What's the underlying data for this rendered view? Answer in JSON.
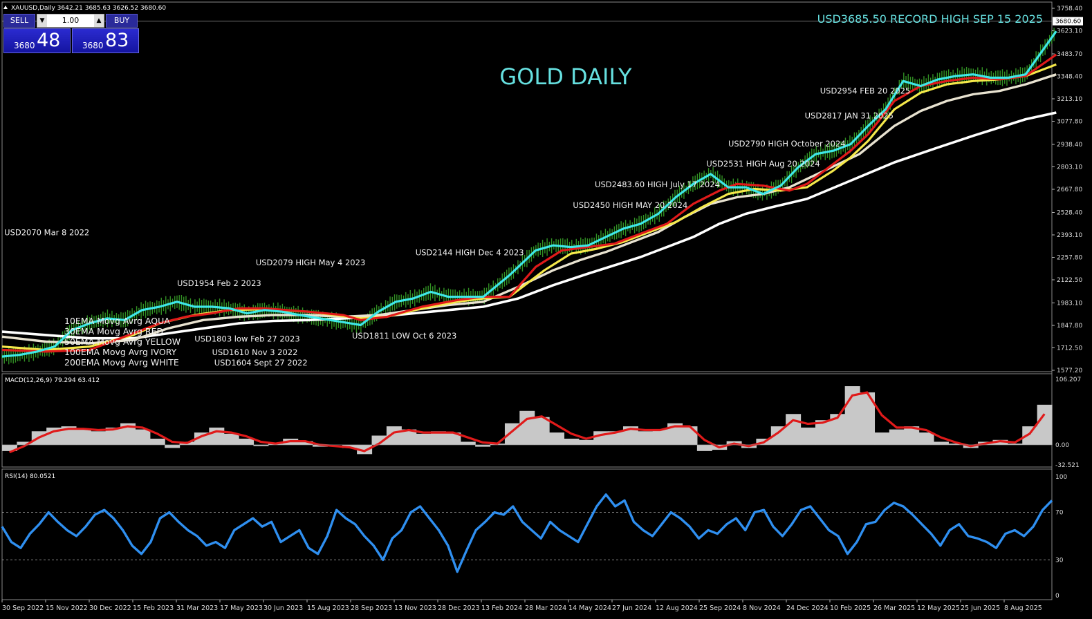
{
  "symbol_header": "XAUUSD,Daily  3642.21 3685.63 3626.52 3680.60",
  "trade_panel": {
    "sell_label": "SELL",
    "buy_label": "BUY",
    "lot": "1.00",
    "sell_small": "3680",
    "sell_big": "48",
    "buy_small": "3680",
    "buy_big": "83"
  },
  "colors": {
    "ema10": "#3ee8e8",
    "ema30": "#e01a1a",
    "ema50": "#f5e84a",
    "ema100": "#e8e2d0",
    "ema200": "#ffffff",
    "candle": "#3aa82a",
    "macd_hist": "#c8c8c8",
    "macd_signal": "#e01a1a",
    "rsi": "#2f8ff0",
    "title": "#66e0e0"
  },
  "chart_data": [
    {
      "type": "line",
      "title": "GOLD DAILY",
      "subtitle": "USD3685.50 RECORD HIGH SEP 15 2025",
      "ylim": [
        1577.2,
        3758.4
      ],
      "y_ticks": [
        "3758.40",
        "3623.10",
        "3483.70",
        "3348.40",
        "3213.10",
        "3077.80",
        "2938.40",
        "2803.10",
        "2667.80",
        "2528.40",
        "2393.10",
        "2257.80",
        "2122.50",
        "1983.10",
        "1847.80",
        "1712.50",
        "1577.20"
      ],
      "price_tag": "3680.60",
      "x_ticks": [
        "30 Sep 2022",
        "15 Nov 2022",
        "30 Dec 2022",
        "15 Feb 2023",
        "31 Mar 2023",
        "17 May 2023",
        "30 Jun 2023",
        "15 Aug 2023",
        "28 Sep 2023",
        "13 Nov 2023",
        "28 Dec 2023",
        "13 Feb 2024",
        "28 Mar 2024",
        "14 May 2024",
        "27 Jun 2024",
        "12 Aug 2024",
        "25 Sep 2024",
        "8 Nov 2024",
        "24 Dec 2024",
        "10 Feb 2025",
        "26 Mar 2025",
        "12 May 2025",
        "25 Jun 2025",
        "8 Aug 2025"
      ],
      "x_index": [
        0,
        0.5,
        1,
        1.5,
        2,
        2.5,
        3,
        3.5,
        4,
        4.5,
        5,
        5.5,
        6,
        6.5,
        7,
        7.5,
        8,
        8.5,
        9,
        9.5,
        10,
        10.5,
        11,
        11.5,
        12,
        12.5,
        13,
        13.5,
        14,
        14.5,
        15,
        15.5,
        16,
        16.5,
        17,
        17.5,
        18,
        18.5,
        19,
        19.5,
        20,
        20.5,
        21,
        21.5,
        22,
        22.5,
        23,
        23.5,
        24
      ],
      "series": [
        {
          "name": "10EMA Movg Avrg AQUA",
          "values": [
            1660,
            1670,
            1690,
            1720,
            1820,
            1860,
            1890,
            1880,
            1940,
            1960,
            1990,
            1960,
            1960,
            1950,
            1920,
            1940,
            1930,
            1910,
            1850,
            1930,
            1990,
            2010,
            2050,
            2020,
            2020,
            2150,
            2300,
            2330,
            2320,
            2330,
            2380,
            2430,
            2460,
            2520,
            2620,
            2700,
            2760,
            2680,
            2680,
            2640,
            2690,
            2800,
            2880,
            2900,
            2940,
            3050,
            3150,
            3320,
            3290,
            3330,
            3350,
            3360,
            3340,
            3340,
            3360,
            3620
          ],
          "x": [
            0,
            0.4,
            0.8,
            1.2,
            1.6,
            2,
            2.4,
            2.8,
            3.2,
            3.6,
            4,
            4.4,
            4.8,
            5.2,
            5.6,
            6,
            6.4,
            6.8,
            8.2,
            8.6,
            9,
            9.4,
            9.8,
            10.2,
            11,
            11.6,
            12.2,
            12.6,
            13,
            13.4,
            13.8,
            14.2,
            14.6,
            15,
            15.4,
            15.8,
            16.2,
            16.6,
            17,
            17.4,
            17.8,
            18.2,
            18.6,
            19,
            19.4,
            19.8,
            20.2,
            20.6,
            21,
            21.4,
            21.8,
            22.2,
            22.6,
            23,
            23.4,
            24.1
          ]
        },
        {
          "name": "30EMA Movg Avrg RED",
          "values": [
            1700,
            1690,
            1700,
            1800,
            1860,
            1900,
            1920,
            1950,
            1950,
            1930,
            1910,
            1880,
            1900,
            1960,
            2000,
            2020,
            2020,
            2200,
            2300,
            2320,
            2340,
            2400,
            2460,
            2580,
            2660,
            2700,
            2690,
            2660,
            2700,
            2820,
            2900,
            3000,
            3200,
            3290,
            3320,
            3340,
            3330,
            3350,
            3480
          ],
          "x": [
            0,
            1,
            2,
            3,
            3.6,
            4.2,
            4.8,
            5.4,
            6,
            7,
            7.8,
            8.2,
            8.8,
            9.6,
            10.4,
            11,
            11.6,
            12.2,
            12.8,
            13.4,
            14,
            14.6,
            15.2,
            15.8,
            16.4,
            16.8,
            17.4,
            18,
            18.4,
            19,
            19.4,
            19.8,
            20.4,
            21,
            21.6,
            22.2,
            22.8,
            23.4,
            24.1
          ]
        },
        {
          "name": "50EMA Movg Avrg YELLOW",
          "values": [
            1720,
            1700,
            1720,
            1790,
            1860,
            1910,
            1940,
            1945,
            1930,
            1910,
            1890,
            1900,
            1950,
            1990,
            2010,
            2020,
            2180,
            2280,
            2310,
            2350,
            2410,
            2470,
            2560,
            2640,
            2670,
            2660,
            2680,
            2780,
            2860,
            2960,
            3150,
            3250,
            3300,
            3320,
            3330,
            3350,
            3420
          ],
          "x": [
            0,
            1,
            2,
            3,
            3.6,
            4.4,
            5.2,
            6,
            7,
            7.6,
            8.2,
            8.8,
            9.6,
            10.4,
            11,
            11.6,
            12.4,
            13,
            13.6,
            14.2,
            14.8,
            15.4,
            16,
            16.6,
            17.2,
            17.8,
            18.4,
            19,
            19.4,
            19.8,
            20.4,
            21,
            21.6,
            22.2,
            22.8,
            23.4,
            24.1
          ]
        },
        {
          "name": "100EMA Movg Avrg IVORY",
          "values": [
            1780,
            1750,
            1740,
            1760,
            1830,
            1880,
            1900,
            1910,
            1910,
            1900,
            1910,
            1940,
            1970,
            1990,
            2080,
            2180,
            2240,
            2290,
            2350,
            2410,
            2500,
            2580,
            2620,
            2640,
            2680,
            2780,
            2880,
            3050,
            3140,
            3200,
            3240,
            3260,
            3300,
            3360
          ],
          "x": [
            0,
            1,
            2,
            3,
            3.8,
            4.6,
            5.4,
            6.2,
            7,
            7.8,
            8.6,
            9.4,
            10.2,
            11,
            11.8,
            12.6,
            13.2,
            13.8,
            14.4,
            15,
            15.6,
            16.2,
            16.8,
            17.4,
            18,
            18.8,
            19.6,
            20.4,
            21,
            21.6,
            22.2,
            22.8,
            23.4,
            24.1
          ]
        },
        {
          "name": "200EMA Movg Avrg WHITE",
          "values": [
            1810,
            1790,
            1770,
            1770,
            1800,
            1830,
            1860,
            1875,
            1880,
            1890,
            1900,
            1920,
            1940,
            1960,
            2010,
            2090,
            2160,
            2210,
            2260,
            2320,
            2380,
            2460,
            2520,
            2560,
            2610,
            2720,
            2830,
            2920,
            2990,
            3040,
            3090,
            3130
          ],
          "x": [
            0,
            1,
            2,
            3,
            3.8,
            4.6,
            5.4,
            6.2,
            7,
            7.8,
            8.6,
            9.4,
            10.2,
            11,
            11.8,
            12.6,
            13.4,
            14,
            14.6,
            15.2,
            15.8,
            16.4,
            17,
            17.6,
            18.4,
            19.4,
            20.4,
            21.4,
            22.2,
            22.8,
            23.4,
            24.1
          ]
        }
      ],
      "annotations": [
        {
          "text": "USD2070 Mar 8 2022",
          "x": 0.05,
          "y": 2390
        },
        {
          "text": "USD2079 HIGH May 4 2023",
          "x": 5.8,
          "y": 2210
        },
        {
          "text": "USD1954 Feb 2 2023",
          "x": 4.0,
          "y": 2085
        },
        {
          "text": "USD2144 HIGH Dec 4 2023",
          "x": 9.45,
          "y": 2270
        },
        {
          "text": "USD2450 HIGH MAY 20 2024",
          "x": 13.05,
          "y": 2555
        },
        {
          "text": "USD2483.60 HIGH July 17 2024",
          "x": 13.55,
          "y": 2680
        },
        {
          "text": "USD2531 HIGH Aug 20 2024",
          "x": 16.1,
          "y": 2805
        },
        {
          "text": "USD2790 HIGH October 2024",
          "x": 16.6,
          "y": 2925
        },
        {
          "text": "USD2817 JAN 31 2025",
          "x": 18.35,
          "y": 3095
        },
        {
          "text": "USD2954 FEB 20 2025",
          "x": 18.7,
          "y": 3245
        },
        {
          "text": "USD1803 low Feb 27 2023",
          "x": 4.4,
          "y": 1750
        },
        {
          "text": "USD1610 Nov 3 2022",
          "x": 4.8,
          "y": 1668
        },
        {
          "text": "USD1604 Sept 27 2022",
          "x": 4.85,
          "y": 1607
        },
        {
          "text": "USD1811 LOW Oct 6 2023",
          "x": 8.0,
          "y": 1768
        }
      ],
      "legend": [
        "10EMA Movg Avrg AQUA",
        "30EMA Movg Avrg RED",
        "50EMA Movg Avrg YELLOW",
        "100EMA Movg Avrg IVORY",
        "200EMA Movg Avrg WHITE"
      ]
    },
    {
      "type": "bar",
      "title": "MACD(12,26,9) 79.294 63.412",
      "ylim": [
        -32.521,
        106.207
      ],
      "y_ticks": [
        "106.207",
        "0.00",
        "-32.521"
      ],
      "histogram": [
        -10,
        5,
        22,
        28,
        30,
        25,
        22,
        28,
        35,
        25,
        10,
        -5,
        5,
        20,
        28,
        18,
        10,
        -2,
        2,
        10,
        6,
        -3,
        0,
        -5,
        -15,
        15,
        30,
        25,
        18,
        22,
        20,
        5,
        -3,
        2,
        35,
        55,
        45,
        20,
        10,
        8,
        22,
        22,
        30,
        22,
        25,
        35,
        30,
        -10,
        -8,
        6,
        -5,
        10,
        30,
        50,
        28,
        40,
        50,
        95,
        85,
        20,
        25,
        30,
        20,
        5,
        2,
        -5,
        5,
        8,
        2,
        30,
        65
      ],
      "signal": [
        -12,
        -2,
        12,
        22,
        26,
        26,
        24,
        25,
        30,
        28,
        18,
        5,
        3,
        14,
        22,
        20,
        14,
        5,
        2,
        6,
        6,
        0,
        -2,
        -4,
        -10,
        2,
        20,
        24,
        20,
        20,
        20,
        12,
        4,
        2,
        22,
        42,
        46,
        32,
        18,
        10,
        16,
        20,
        26,
        24,
        24,
        30,
        30,
        8,
        -4,
        2,
        -2,
        4,
        20,
        40,
        34,
        36,
        44,
        80,
        85,
        48,
        28,
        28,
        24,
        12,
        4,
        -2,
        2,
        6,
        4,
        18,
        50
      ]
    },
    {
      "type": "line",
      "title": "RSI(14) 80.0521",
      "ylim": [
        0,
        100
      ],
      "y_ticks": [
        "100",
        "70",
        "30",
        "0"
      ],
      "levels": [
        70,
        30
      ],
      "values": [
        58,
        45,
        40,
        52,
        60,
        70,
        62,
        55,
        50,
        58,
        68,
        72,
        65,
        55,
        42,
        35,
        45,
        65,
        70,
        62,
        55,
        50,
        42,
        45,
        40,
        55,
        60,
        65,
        58,
        62,
        45,
        50,
        55,
        40,
        35,
        50,
        72,
        65,
        60,
        50,
        42,
        30,
        48,
        55,
        70,
        75,
        65,
        55,
        42,
        20,
        38,
        55,
        62,
        70,
        68,
        75,
        62,
        55,
        48,
        62,
        55,
        50,
        45,
        60,
        75,
        85,
        75,
        80,
        62,
        55,
        50,
        60,
        70,
        65,
        58,
        48,
        55,
        52,
        60,
        65,
        55,
        70,
        72,
        58,
        50,
        60,
        72,
        75,
        65,
        55,
        50,
        35,
        45,
        60,
        62,
        72,
        78,
        75,
        68,
        60,
        52,
        42,
        55,
        60,
        50,
        48,
        45,
        40,
        52,
        55,
        50,
        58,
        72,
        80
      ]
    }
  ]
}
